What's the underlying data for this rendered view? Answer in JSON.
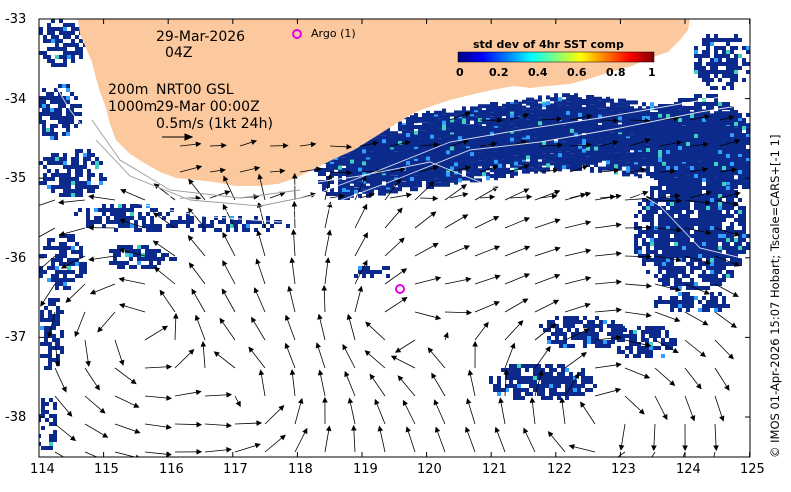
{
  "title_date": "29-Mar-2026",
  "title_time": "04Z",
  "argo_label": "Argo (1)",
  "legend": {
    "line1_depth": "200m",
    "line1_product": "NRT00 GSL",
    "line2_depth": "1000m",
    "line2_time": "29-Mar 00:00Z",
    "scale_arrow": "0.5m/s (1kt 24h)"
  },
  "colorbar": {
    "title": "std dev of 4hr SST comp",
    "ticks": [
      "0",
      "0.2",
      "0.4",
      "0.6",
      "0.8",
      "1"
    ],
    "colors": [
      "#00007f",
      "#0000ff",
      "#007fff",
      "#00ffff",
      "#7fff7f",
      "#ffff00",
      "#ff7f00",
      "#ff0000",
      "#7f0000"
    ]
  },
  "credit": "© IMOS 01-Apr-2026 15:07 Hobart; Tscale=CARS+[-1 1]",
  "axes": {
    "x_ticks": [
      "114",
      "115",
      "116",
      "117",
      "118",
      "119",
      "120",
      "121",
      "122",
      "123",
      "124",
      "125"
    ],
    "y_ticks": [
      "-33",
      "-34",
      "-35",
      "-36",
      "-37",
      "-38"
    ]
  },
  "colors": {
    "land": "#fbc99d",
    "sst_blue": "#0b2a8c",
    "argo": "#e800e8"
  }
}
